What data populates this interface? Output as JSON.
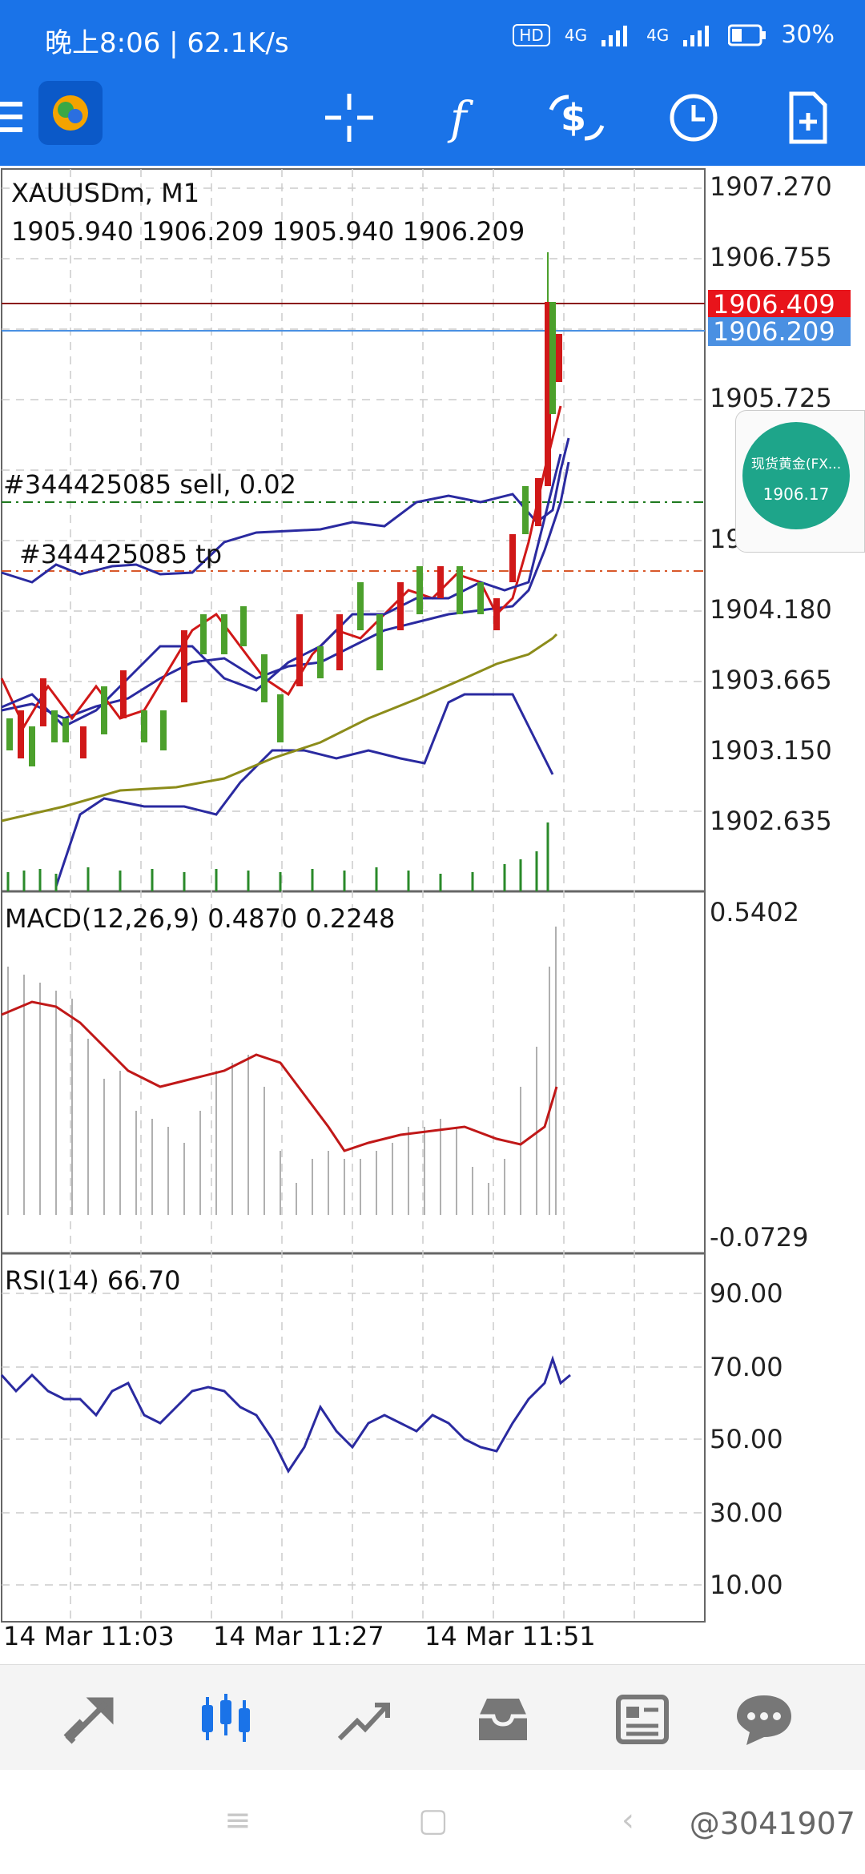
{
  "status_bar": {
    "time_speed": "晚上8:06 | 62.1K/s",
    "network_badge": "HD",
    "signal1_label": "4G",
    "signal2_label": "4G",
    "battery": "30%"
  },
  "toolbar": {
    "icons": [
      "menu-icon",
      "mt5-logo",
      "crosshair-icon",
      "function-icon",
      "trade-icon",
      "clock-icon",
      "new-chart-icon"
    ]
  },
  "chart": {
    "symbol": "XAUUSDm, M1",
    "ohlc": "1905.940 1906.209 1905.940 1906.209",
    "price_scale": [
      "1907.270",
      "1906.755",
      "1905.725",
      "1904.695",
      "1904.180",
      "1903.665",
      "1903.150",
      "1902.635"
    ],
    "ask_price": "1906.409",
    "bid_price": "1906.209",
    "order_label": "#344425085 sell, 0.02",
    "tp_label": "#344425085 tp",
    "ask_color": "#e8141b",
    "bid_color": "#4a90e2"
  },
  "widget": {
    "title": "现货黄金(FX...",
    "price": "1906.17",
    "color": "#1ea58a"
  },
  "macd": {
    "title": "MACD(12,26,9) 0.4870 0.2248",
    "scale_top": "0.5402",
    "scale_bottom": "-0.0729"
  },
  "rsi": {
    "title": "RSI(14) 66.70",
    "levels": [
      "90.00",
      "70.00",
      "50.00",
      "30.00",
      "10.00"
    ]
  },
  "time_axis": [
    "14 Mar 11:03",
    "14 Mar 11:27",
    "14 Mar 11:51"
  ],
  "bottom_nav": {
    "items": [
      "quotes-icon",
      "chart-icon",
      "trade-icon",
      "history-icon",
      "news-icon",
      "messages-icon"
    ],
    "active_color": "#1a73e8"
  },
  "watermark": "@3041907"
}
